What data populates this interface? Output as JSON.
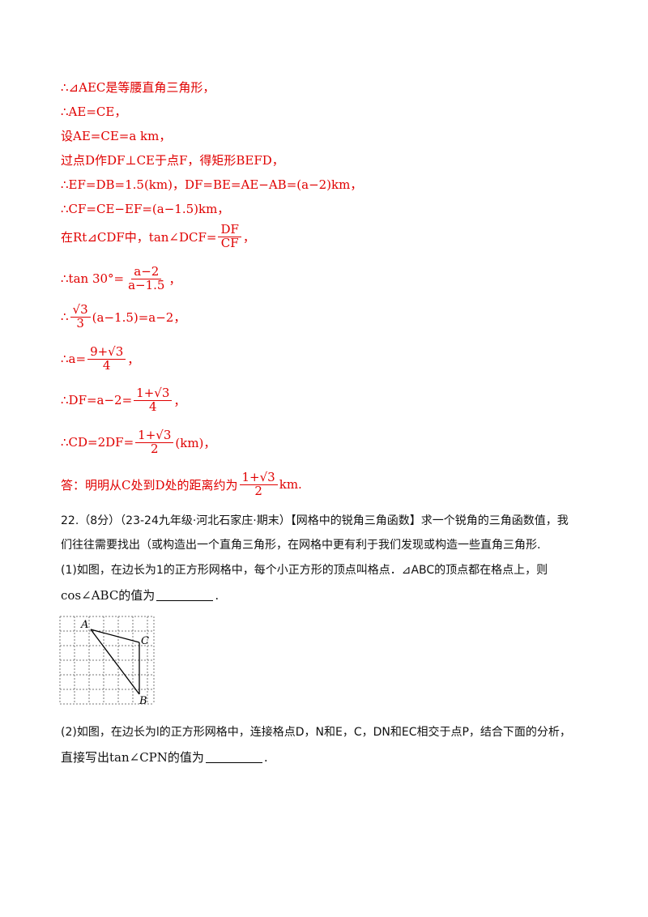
{
  "solution": {
    "l1": "∴⊿AEC是等腰直角三角形，",
    "l2": "∴AE=CE，",
    "l3": "设AE=CE=a km，",
    "l4": "过点D作DF⊥CE于点F，得矩形BEFD，",
    "l5": "∴EF=DB=1.5(km)，DF=BE=AE−AB=(a−2)km，",
    "l6": "∴CF=CE−EF=(a−1.5)km，",
    "l7_prefix": "在Rt⊿CDF中，tan∠DCF=",
    "l7_num": "DF",
    "l7_den": "CF",
    "l7_suffix": "，",
    "l8_prefix": "∴tan 30°=",
    "l8_num": "a−2",
    "l8_den": "a−1.5",
    "l8_suffix": "，",
    "l9_prefix": "∴",
    "l9_num": "√3",
    "l9_den": "3",
    "l9_suffix": "(a−1.5)=a−2，",
    "l10_prefix": "∴a=",
    "l10_num": "9+√3",
    "l10_den": "4",
    "l10_suffix": "，",
    "l11_prefix": "∴DF=a−2=",
    "l11_num": "1+√3",
    "l11_den": "4",
    "l11_suffix": "，",
    "l12_prefix": "∴CD=2DF=",
    "l12_num": "1+√3",
    "l12_den": "2",
    "l12_suffix": "(km)，",
    "answer_prefix": "答：明明从C处到D处的距离约为",
    "answer_num": "1+√3",
    "answer_den": "2",
    "answer_suffix": "km."
  },
  "question": {
    "header": "22.（8分）（23-24九年级·河北石家庄·期末）【网格中的锐角三角函数】求一个锐角的三角函数值，我",
    "header2": "们往往需要找出（或构造出一个直角三角形，在网格中更有利于我们发现或构造一些直角三角形.",
    "part1": "(1)如图，在边长为1的正方形网格中，每个小正方形的顶点叫格点．⊿ABC的顶点都在格点上，则",
    "part1b": "cos∠ABC的值为",
    "part1b_end": ".",
    "part2": "(2)如图，在边长为l的正方形网格中，连接格点D，N和E，C，DN和EC相交于点P，结合下面的分析，",
    "part2b": "直接写出tan∠CPN的值为",
    "part2b_end": "."
  },
  "figure": {
    "labels": {
      "A": "A",
      "B": "B",
      "C": "C"
    }
  }
}
